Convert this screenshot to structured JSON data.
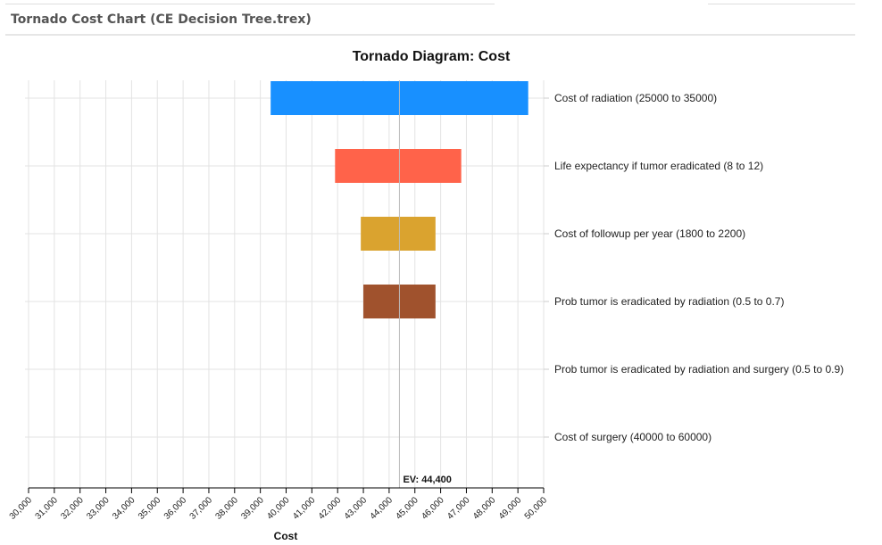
{
  "panel": {
    "title": "Tornado Cost Chart (CE Decision Tree.trex)"
  },
  "chart_data": {
    "type": "bar",
    "orientation": "horizontal",
    "subtype": "tornado",
    "title": "Tornado Diagram: Cost",
    "xlabel": "Cost",
    "xlim": [
      30000,
      50000
    ],
    "xticks": [
      "30,000",
      "31,000",
      "32,000",
      "33,000",
      "34,000",
      "35,000",
      "36,000",
      "37,000",
      "38,000",
      "39,000",
      "40,000",
      "41,000",
      "42,000",
      "43,000",
      "44,000",
      "45,000",
      "46,000",
      "47,000",
      "48,000",
      "49,000",
      "50,000"
    ],
    "grid": true,
    "ev": 44400,
    "ev_label": "EV: 44,400",
    "bars": [
      {
        "label": "Cost of radiation (25000 to 35000)",
        "low": 39400,
        "high": 49400,
        "color": "#1890ff"
      },
      {
        "label": "Life expectancy if tumor eradicated (8 to 12)",
        "low": 41900,
        "high": 46800,
        "color": "#ff634a"
      },
      {
        "label": "Cost of followup per year (1800 to 2200)",
        "low": 42900,
        "high": 45800,
        "color": "#daa32f"
      },
      {
        "label": "Prob tumor is eradicated by radiation (0.5 to 0.7)",
        "low": 43000,
        "high": 45800,
        "color": "#a0522d"
      },
      {
        "label": "Prob tumor is eradicated by radiation and surgery (0.5 to 0.9)",
        "low": 44400,
        "high": 44400,
        "color": "#888888"
      },
      {
        "label": "Cost of surgery (40000 to 60000)",
        "low": 44400,
        "high": 44400,
        "color": "#888888"
      }
    ]
  }
}
